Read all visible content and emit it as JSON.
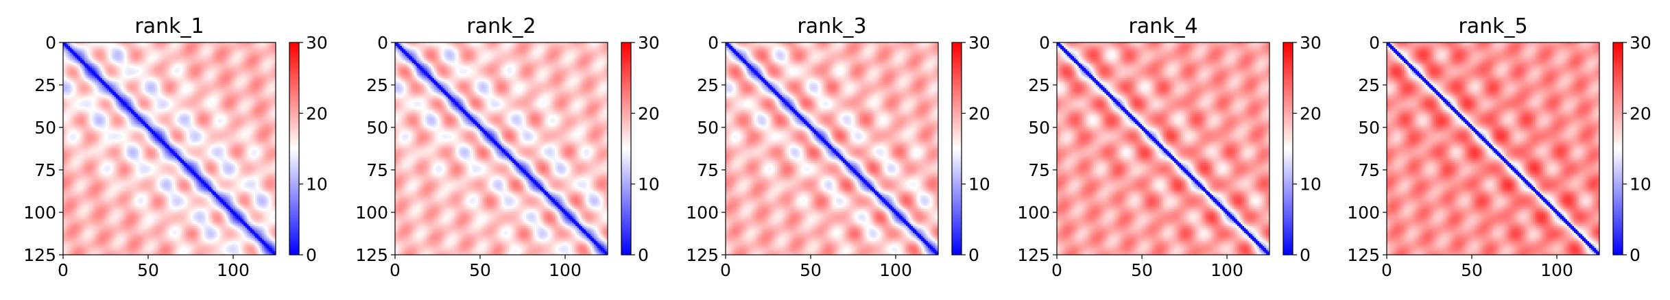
{
  "chart_data": [
    {
      "type": "heatmap",
      "title": "rank_1",
      "xlabel": "",
      "ylabel": "",
      "xlim": [
        0,
        125
      ],
      "ylim": [
        125,
        0
      ],
      "xticks": [
        0,
        50,
        100
      ],
      "yticks": [
        0,
        25,
        50,
        75,
        100,
        125
      ],
      "matrix_size": 125,
      "diagonal_value": 0,
      "band_period": 25,
      "band_amplitude": 8,
      "band_offset": 2,
      "far_value": 26,
      "colorbar": {
        "ticks": [
          0,
          10,
          20,
          30
        ],
        "range": [
          0,
          30
        ],
        "colormap": "bwr"
      }
    },
    {
      "type": "heatmap",
      "title": "rank_2",
      "xlabel": "",
      "ylabel": "",
      "xlim": [
        0,
        125
      ],
      "ylim": [
        125,
        0
      ],
      "xticks": [
        0,
        50,
        100
      ],
      "yticks": [
        0,
        25,
        50,
        75,
        100,
        125
      ],
      "matrix_size": 125,
      "diagonal_value": 0,
      "band_period": 25,
      "band_amplitude": 9,
      "band_offset": 3,
      "far_value": 25,
      "colorbar": {
        "ticks": [
          0,
          10,
          20,
          30
        ],
        "range": [
          0,
          30
        ],
        "colormap": "bwr"
      }
    },
    {
      "type": "heatmap",
      "title": "rank_3",
      "xlabel": "",
      "ylabel": "",
      "xlim": [
        0,
        125
      ],
      "ylim": [
        125,
        0
      ],
      "xticks": [
        0,
        50,
        100
      ],
      "yticks": [
        0,
        25,
        50,
        75,
        100,
        125
      ],
      "matrix_size": 125,
      "diagonal_value": 0,
      "band_period": 25,
      "band_amplitude": 9,
      "band_offset": 4,
      "far_value": 26,
      "colorbar": {
        "ticks": [
          0,
          10,
          20,
          30
        ],
        "range": [
          0,
          30
        ],
        "colormap": "bwr"
      }
    },
    {
      "type": "heatmap",
      "title": "rank_4",
      "xlabel": "",
      "ylabel": "",
      "xlim": [
        0,
        125
      ],
      "ylim": [
        125,
        0
      ],
      "xticks": [
        0,
        50,
        100
      ],
      "yticks": [
        0,
        25,
        50,
        75,
        100,
        125
      ],
      "matrix_size": 125,
      "diagonal_value": 0,
      "band_period": 25,
      "band_amplitude": 7,
      "band_offset": 8,
      "far_value": 28,
      "colorbar": {
        "ticks": [
          0,
          10,
          20,
          30
        ],
        "range": [
          0,
          30
        ],
        "colormap": "bwr"
      }
    },
    {
      "type": "heatmap",
      "title": "rank_5",
      "xlabel": "",
      "ylabel": "",
      "xlim": [
        0,
        125
      ],
      "ylim": [
        125,
        0
      ],
      "xticks": [
        0,
        50,
        100
      ],
      "yticks": [
        0,
        25,
        50,
        75,
        100,
        125
      ],
      "matrix_size": 125,
      "diagonal_value": 0,
      "band_period": 25,
      "band_amplitude": 6,
      "band_offset": 10,
      "far_value": 29,
      "colorbar": {
        "ticks": [
          0,
          10,
          20,
          30
        ],
        "range": [
          0,
          30
        ],
        "colormap": "bwr"
      }
    }
  ]
}
